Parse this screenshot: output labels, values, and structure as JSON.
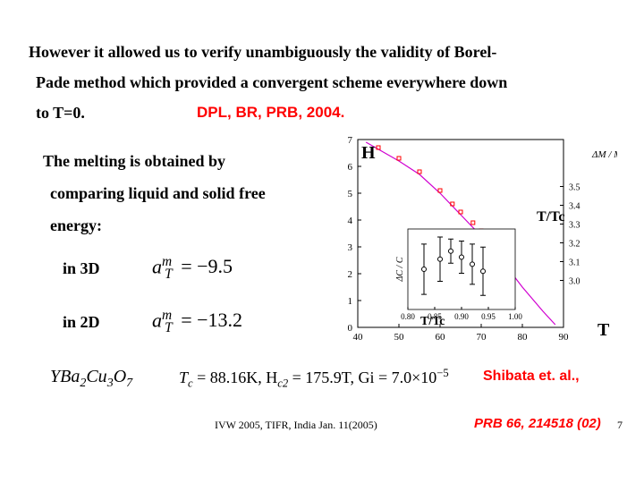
{
  "text": {
    "line1": "However it allowed us to verify unambiguously the validity of Borel-",
    "line2": "Pade method which provided a convergent scheme everywhere down",
    "line3": "to T=0.",
    "ref1": "DPL, BR, PRB, 2004.",
    "melt1": "The melting is obtained by",
    "melt2": "comparing liquid and solid free",
    "melt3": "energy:",
    "in3d": "in 3D",
    "in2d": "in 2D",
    "eq3d_lhs": "a",
    "eq3d_sup": "m",
    "eq3d_sub": "T",
    "eq3d_rhs": "= −9.5",
    "eq2d_rhs": "= −13.2",
    "compound_pre": "YBa",
    "compound_mid": "Cu",
    "compound_ox": "O",
    "tc_label": "T",
    "tc_sub": "c",
    "tc_val": " = 88.16K, H",
    "hc2_sub": "c2",
    "hc2_val": " = 175.9T, Gi = 7.0×10",
    "gi_exp": "−5",
    "shibata": "Shibata et. al.,",
    "prbref": "PRB 66, 214518 (02)",
    "footer": "IVW 2005, TIFR, India Jan. 11(2005)",
    "pagenum": "7"
  },
  "chart": {
    "H_label": "H",
    "T_label": "T",
    "TTc_label": "T/Tc",
    "ylabel_dM": "ΔM / M",
    "ylabel_dC": "ΔC / C",
    "x_range": [
      40,
      90
    ],
    "x_ticks": [
      40,
      50,
      60,
      70,
      80,
      90
    ],
    "y_range": [
      0,
      7
    ],
    "y_ticks": [
      0,
      1,
      2,
      3,
      4,
      5,
      6,
      7
    ],
    "line_points": [
      [
        42,
        6.9
      ],
      [
        50,
        6.2
      ],
      [
        55,
        5.7
      ],
      [
        60,
        5.0
      ],
      [
        65,
        4.2
      ],
      [
        70,
        3.4
      ],
      [
        75,
        2.5
      ],
      [
        80,
        1.5
      ],
      [
        85,
        0.6
      ],
      [
        88,
        0.1
      ]
    ],
    "line_color": "#d000d0",
    "mag_pts": [
      [
        45,
        6.7
      ],
      [
        50,
        6.3
      ],
      [
        55,
        5.8
      ],
      [
        60,
        5.1
      ],
      [
        63,
        4.6
      ],
      [
        65,
        4.3
      ],
      [
        68,
        3.9
      ],
      [
        70,
        3.6
      ]
    ],
    "mag_color": "#ff0000",
    "inset": {
      "x_range": [
        0.8,
        1.0
      ],
      "x_ticks": [
        0.8,
        0.85,
        0.9,
        0.95,
        1.0
      ],
      "pts_x": [
        0.83,
        0.86,
        0.88,
        0.9,
        0.92,
        0.94
      ],
      "pts_y": [
        4.0,
        5.0,
        5.8,
        5.2,
        4.5,
        3.8
      ],
      "err": [
        2.5,
        2.2,
        1.2,
        1.6,
        2.0,
        2.4
      ],
      "color": "#000000"
    },
    "colors": {
      "axis": "#000000",
      "bg": "#ffffff",
      "grid": "#808080"
    },
    "font_size_axis": 11
  },
  "style": {
    "body_fontsize": 18,
    "ref_fontsize": 17,
    "footer_fontsize": 12,
    "eq_fontsize": 20
  }
}
